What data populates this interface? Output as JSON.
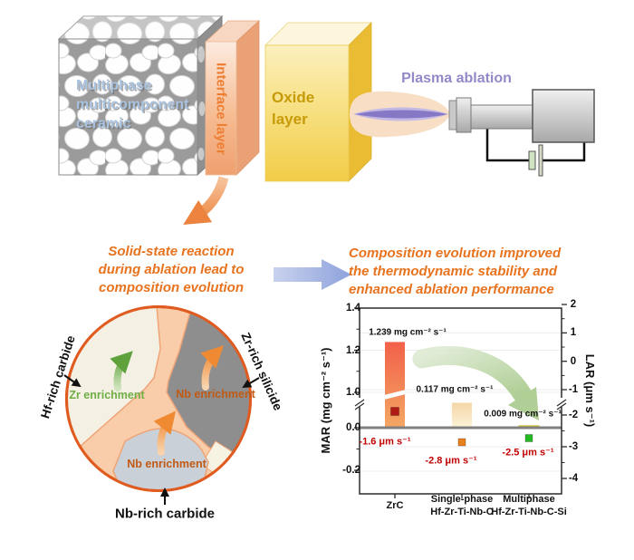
{
  "scene": {
    "ceramic_lines": [
      "Multiphase",
      "multicomponent",
      "ceramic"
    ],
    "interface_label": "Interface layer",
    "oxide_lines": [
      "Oxide",
      "layer"
    ],
    "plasma_label": "Plasma ablation"
  },
  "statements": {
    "left_lines": [
      "Solid-state reaction",
      "during ablation lead to",
      "composition evolution"
    ],
    "right_lines": [
      "Composition evolution improved",
      "the thermodynamic stability and",
      "enhanced ablation performance"
    ]
  },
  "microstructure": {
    "grains": [
      {
        "label": "Hf-rich carbide",
        "enrichment": "Zr enrichment",
        "enrichment_color": "#6fae44"
      },
      {
        "label": "Zr-rich silicide",
        "enrichment": "Nb enrichment",
        "enrichment_color": "#c05a15"
      },
      {
        "label": "Nb-rich carbide",
        "enrichment": "Nb enrichment",
        "enrichment_color": "#c05a15"
      }
    ]
  },
  "chart_data": {
    "type": "bar",
    "title": "",
    "categories": [
      [
        "ZrC"
      ],
      [
        "Single-phase",
        "Hf-Zr-Ti-Nb-C"
      ],
      [
        "Multiphase",
        "Hf-Zr-Ti-Nb-C-Si"
      ]
    ],
    "series": [
      {
        "name": "MAR",
        "type": "bar",
        "axis": "left",
        "values": [
          1.239,
          0.117,
          0.009
        ],
        "value_labels": [
          "1.239 mg cm⁻² s⁻¹",
          "0.117 mg cm⁻² s⁻¹",
          "0.009 mg cm⁻² s⁻¹"
        ],
        "bar_colors": [
          [
            "#f2604a",
            "#f4a763"
          ],
          [
            "#f5d7a8",
            "#fbf3d8"
          ],
          [
            "#f2e060",
            "#fdf6b0"
          ]
        ],
        "bar_strokes": [
          null,
          null,
          "#c8b820"
        ]
      },
      {
        "name": "LAR",
        "type": "scatter",
        "axis": "right",
        "values": [
          -1.6,
          -2.8,
          -2.5
        ],
        "value_labels": [
          "-1.6 μm s⁻¹",
          "-2.8 μm s⁻¹",
          "-2.5 μm s⁻¹"
        ],
        "marker_colors": [
          "#b01c13",
          "#e8821f",
          "#22bb22"
        ]
      }
    ],
    "left_axis": {
      "label": "MAR (mg cm⁻² s⁻¹)",
      "ticks": [
        "1.4",
        "1.2",
        "1.0",
        "0.0",
        "-0.2"
      ],
      "tick_values": [
        1.4,
        1.2,
        1.0,
        0.0,
        -0.2
      ],
      "ylim": [
        -0.3,
        1.4
      ],
      "break": true
    },
    "right_axis": {
      "label": "LAR (μm s⁻¹)",
      "ticks": [
        "2",
        "1",
        "0",
        "-1",
        "-2",
        "-3",
        "-4"
      ],
      "tick_values": [
        2,
        1,
        0,
        -1,
        -2,
        -3,
        -4
      ],
      "ylim": [
        -4.5,
        2
      ],
      "break": true
    },
    "grid": "light-horizontal",
    "legend": "none"
  },
  "colors": {
    "accent_orange": "#e8731e",
    "interface_orange": "#ed7d31",
    "oxide_gold": "#c79b08",
    "ceramic_blue": "#a8c2df",
    "plasma_purple": "#9489c8",
    "pie_border": "#df5b20",
    "pie_boundary_peach": "#f9cda9",
    "grain_cream": "#f4f1e4",
    "grain_gray": "#8e8e8e",
    "grain_bluegray": "#cad0d7",
    "lar_label_red": "#c00000"
  }
}
